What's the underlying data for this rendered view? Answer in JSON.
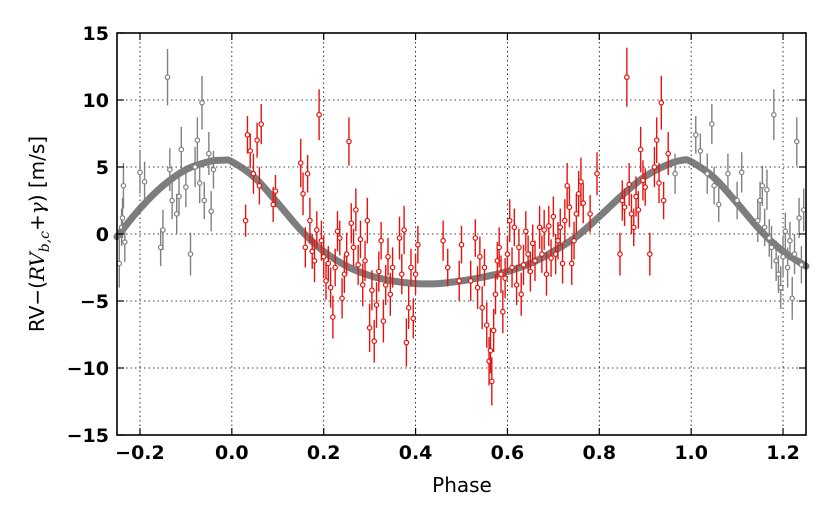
{
  "chart_data": {
    "type": "scatter",
    "xlabel": "Phase",
    "ylabel": {
      "prefix": "RV−(",
      "rv": "RV",
      "subscript": "b,c",
      "plus": "+",
      "gamma": "γ",
      "suffix": ") [m/s]"
    },
    "xlim": [
      -0.25,
      1.25
    ],
    "ylim": [
      -15,
      15
    ],
    "xticks": [
      -0.2,
      0.0,
      0.2,
      0.4,
      0.6,
      0.8,
      1.0,
      1.2
    ],
    "yticks": [
      -15,
      -10,
      -5,
      0,
      5,
      10,
      15
    ],
    "xtick_labels": [
      "−0.2",
      "0.0",
      "0.2",
      "0.4",
      "0.6",
      "0.8",
      "1.0",
      "1.2"
    ],
    "ytick_labels": [
      "−15",
      "−10",
      "−5",
      "0",
      "5",
      "10",
      "15"
    ],
    "grid": true,
    "colors": {
      "primary": "#e8120c",
      "wrapped": "#808080",
      "model": "#666666"
    },
    "model_curve": {
      "description": "Keplerian fit",
      "x": [
        -0.25,
        -0.2,
        -0.15,
        -0.1,
        -0.05,
        -0.02,
        0.0,
        0.05,
        0.1,
        0.15,
        0.2,
        0.25,
        0.3,
        0.35,
        0.4,
        0.45,
        0.5,
        0.55,
        0.6,
        0.65,
        0.7,
        0.75,
        0.8,
        0.85,
        0.9,
        0.95,
        0.98,
        1.0,
        1.05,
        1.1,
        1.15,
        1.2,
        1.25
      ],
      "y": [
        -0.2,
        1.9,
        3.6,
        4.8,
        5.4,
        5.5,
        5.4,
        4.2,
        2.3,
        0.3,
        -1.3,
        -2.4,
        -3.1,
        -3.5,
        -3.7,
        -3.7,
        -3.5,
        -3.2,
        -2.8,
        -2.2,
        -1.3,
        -0.2,
        1.3,
        2.9,
        4.3,
        5.2,
        5.5,
        5.4,
        4.2,
        2.3,
        0.3,
        -1.3,
        -2.4
      ]
    },
    "series": [
      {
        "color": "#e8120c",
        "points": [
          {
            "x": 0.03,
            "y": 1.0,
            "err": 1.2
          },
          {
            "x": 0.034,
            "y": 7.4,
            "err": 1.4
          },
          {
            "x": 0.04,
            "y": 6.2,
            "err": 1.3
          },
          {
            "x": 0.047,
            "y": 4.5,
            "err": 1.5
          },
          {
            "x": 0.055,
            "y": 7.0,
            "err": 1.3
          },
          {
            "x": 0.06,
            "y": 3.6,
            "err": 1.4
          },
          {
            "x": 0.064,
            "y": 8.2,
            "err": 1.5
          },
          {
            "x": 0.09,
            "y": 2.2,
            "err": 1.3
          },
          {
            "x": 0.095,
            "y": 3.2,
            "err": 1.2
          },
          {
            "x": 0.15,
            "y": 5.3,
            "err": 1.8
          },
          {
            "x": 0.155,
            "y": 3.0,
            "err": 1.6
          },
          {
            "x": 0.16,
            "y": -1.0,
            "err": 1.5
          },
          {
            "x": 0.165,
            "y": 4.5,
            "err": 1.4
          },
          {
            "x": 0.17,
            "y": 1.0,
            "err": 1.7
          },
          {
            "x": 0.175,
            "y": -1.3,
            "err": 1.3
          },
          {
            "x": 0.18,
            "y": -2.0,
            "err": 1.6
          },
          {
            "x": 0.185,
            "y": 0.3,
            "err": 1.4
          },
          {
            "x": 0.19,
            "y": 8.9,
            "err": 1.9
          },
          {
            "x": 0.195,
            "y": -0.5,
            "err": 1.5
          },
          {
            "x": 0.2,
            "y": -1.7,
            "err": 1.6
          },
          {
            "x": 0.205,
            "y": -3.5,
            "err": 1.4
          },
          {
            "x": 0.21,
            "y": -2.2,
            "err": 1.3
          },
          {
            "x": 0.215,
            "y": -4.0,
            "err": 1.5
          },
          {
            "x": 0.22,
            "y": -6.2,
            "err": 1.6
          },
          {
            "x": 0.225,
            "y": -2.5,
            "err": 1.4
          },
          {
            "x": 0.23,
            "y": 0.2,
            "err": 1.5
          },
          {
            "x": 0.235,
            "y": -0.3,
            "err": 1.3
          },
          {
            "x": 0.24,
            "y": -4.8,
            "err": 1.5
          },
          {
            "x": 0.245,
            "y": -3.0,
            "err": 1.4
          },
          {
            "x": 0.25,
            "y": -1.5,
            "err": 1.6
          },
          {
            "x": 0.255,
            "y": 6.9,
            "err": 1.8
          },
          {
            "x": 0.26,
            "y": 0.8,
            "err": 1.5
          },
          {
            "x": 0.265,
            "y": -1.0,
            "err": 1.4
          },
          {
            "x": 0.27,
            "y": 1.8,
            "err": 1.6
          },
          {
            "x": 0.275,
            "y": -2.3,
            "err": 1.5
          },
          {
            "x": 0.28,
            "y": -0.4,
            "err": 1.4
          },
          {
            "x": 0.285,
            "y": -3.8,
            "err": 1.6
          },
          {
            "x": 0.29,
            "y": -2.0,
            "err": 1.5
          },
          {
            "x": 0.295,
            "y": 1.0,
            "err": 1.7
          },
          {
            "x": 0.3,
            "y": -7.0,
            "err": 1.8
          },
          {
            "x": 0.305,
            "y": -4.2,
            "err": 1.5
          },
          {
            "x": 0.31,
            "y": -8.0,
            "err": 1.6
          },
          {
            "x": 0.315,
            "y": -5.3,
            "err": 1.7
          },
          {
            "x": 0.32,
            "y": -2.8,
            "err": 1.5
          },
          {
            "x": 0.325,
            "y": -0.5,
            "err": 1.4
          },
          {
            "x": 0.33,
            "y": -6.5,
            "err": 1.6
          },
          {
            "x": 0.335,
            "y": -3.8,
            "err": 1.5
          },
          {
            "x": 0.34,
            "y": -1.7,
            "err": 1.4
          },
          {
            "x": 0.345,
            "y": -4.5,
            "err": 1.6
          },
          {
            "x": 0.35,
            "y": -2.5,
            "err": 1.5
          },
          {
            "x": 0.365,
            "y": -0.3,
            "err": 1.6
          },
          {
            "x": 0.37,
            "y": -3.0,
            "err": 1.5
          },
          {
            "x": 0.375,
            "y": 0.3,
            "err": 1.8
          },
          {
            "x": 0.38,
            "y": -8.1,
            "err": 1.8
          },
          {
            "x": 0.385,
            "y": -5.5,
            "err": 1.6
          },
          {
            "x": 0.39,
            "y": -2.5,
            "err": 1.4
          },
          {
            "x": 0.395,
            "y": -6.3,
            "err": 1.5
          },
          {
            "x": 0.4,
            "y": -3.0,
            "err": 1.5
          },
          {
            "x": 0.405,
            "y": -0.8,
            "err": 1.4
          },
          {
            "x": 0.46,
            "y": -0.5,
            "err": 1.5
          },
          {
            "x": 0.47,
            "y": -2.5,
            "err": 1.4
          },
          {
            "x": 0.495,
            "y": -3.5,
            "err": 1.5
          },
          {
            "x": 0.5,
            "y": -0.8,
            "err": 1.4
          },
          {
            "x": 0.52,
            "y": -3.5,
            "err": 1.5
          },
          {
            "x": 0.53,
            "y": -0.3,
            "err": 1.4
          },
          {
            "x": 0.535,
            "y": -4.0,
            "err": 1.6
          },
          {
            "x": 0.54,
            "y": -1.7,
            "err": 1.5
          },
          {
            "x": 0.545,
            "y": -5.5,
            "err": 1.6
          },
          {
            "x": 0.55,
            "y": -2.5,
            "err": 1.4
          },
          {
            "x": 0.555,
            "y": -6.8,
            "err": 1.7
          },
          {
            "x": 0.56,
            "y": -9.5,
            "err": 1.8
          },
          {
            "x": 0.563,
            "y": -8.7,
            "err": 1.7
          },
          {
            "x": 0.566,
            "y": -11.0,
            "err": 1.8
          },
          {
            "x": 0.57,
            "y": -7.2,
            "err": 1.6
          },
          {
            "x": 0.574,
            "y": -4.5,
            "err": 1.5
          },
          {
            "x": 0.578,
            "y": -2.0,
            "err": 1.4
          },
          {
            "x": 0.582,
            "y": -1.0,
            "err": 1.5
          },
          {
            "x": 0.586,
            "y": -3.0,
            "err": 1.4
          },
          {
            "x": 0.59,
            "y": -5.8,
            "err": 1.6
          },
          {
            "x": 0.595,
            "y": -3.3,
            "err": 1.5
          },
          {
            "x": 0.6,
            "y": -1.5,
            "err": 1.4
          },
          {
            "x": 0.605,
            "y": 1.0,
            "err": 1.6
          },
          {
            "x": 0.61,
            "y": -2.5,
            "err": 1.5
          },
          {
            "x": 0.615,
            "y": 0.5,
            "err": 1.4
          },
          {
            "x": 0.62,
            "y": -3.8,
            "err": 1.5
          },
          {
            "x": 0.625,
            "y": -1.0,
            "err": 1.4
          },
          {
            "x": 0.63,
            "y": -4.5,
            "err": 1.6
          },
          {
            "x": 0.635,
            "y": -2.3,
            "err": 1.5
          },
          {
            "x": 0.64,
            "y": 0.2,
            "err": 1.5
          },
          {
            "x": 0.645,
            "y": -1.5,
            "err": 1.4
          },
          {
            "x": 0.65,
            "y": -2.8,
            "err": 1.5
          },
          {
            "x": 0.655,
            "y": -0.7,
            "err": 1.4
          },
          {
            "x": 0.66,
            "y": -2.0,
            "err": 1.5
          },
          {
            "x": 0.67,
            "y": 0.5,
            "err": 1.6
          },
          {
            "x": 0.675,
            "y": -1.5,
            "err": 1.4
          },
          {
            "x": 0.68,
            "y": 0.3,
            "err": 1.5
          },
          {
            "x": 0.685,
            "y": -3.0,
            "err": 1.6
          },
          {
            "x": 0.69,
            "y": 0.6,
            "err": 1.5
          },
          {
            "x": 0.695,
            "y": -1.8,
            "err": 1.4
          },
          {
            "x": 0.7,
            "y": 1.3,
            "err": 1.5
          },
          {
            "x": 0.705,
            "y": -1.5,
            "err": 1.5
          },
          {
            "x": 0.71,
            "y": -0.5,
            "err": 1.4
          },
          {
            "x": 0.715,
            "y": 0.5,
            "err": 1.4
          },
          {
            "x": 0.72,
            "y": -2.2,
            "err": 1.5
          },
          {
            "x": 0.725,
            "y": 1.0,
            "err": 1.6
          },
          {
            "x": 0.73,
            "y": 3.6,
            "err": 1.7
          },
          {
            "x": 0.735,
            "y": 2.0,
            "err": 1.5
          },
          {
            "x": 0.74,
            "y": -2.2,
            "err": 1.6
          },
          {
            "x": 0.745,
            "y": -0.5,
            "err": 1.4
          },
          {
            "x": 0.75,
            "y": 1.5,
            "err": 1.5
          },
          {
            "x": 0.755,
            "y": 3.0,
            "err": 1.7
          },
          {
            "x": 0.76,
            "y": 3.9,
            "err": 1.8
          },
          {
            "x": 0.765,
            "y": 2.3,
            "err": 1.5
          },
          {
            "x": 0.78,
            "y": 1.5,
            "err": 1.4
          },
          {
            "x": 0.795,
            "y": 4.5,
            "err": 1.6
          },
          {
            "x": 0.845,
            "y": -1.5,
            "err": 1.6
          },
          {
            "x": 0.85,
            "y": 2.5,
            "err": 1.5
          },
          {
            "x": 0.855,
            "y": 2.0,
            "err": 1.4
          },
          {
            "x": 0.86,
            "y": 11.7,
            "err": 2.2
          },
          {
            "x": 0.865,
            "y": 3.7,
            "err": 1.6
          },
          {
            "x": 0.87,
            "y": 1.5,
            "err": 1.5
          },
          {
            "x": 0.875,
            "y": 0.5,
            "err": 1.4
          },
          {
            "x": 0.88,
            "y": 2.8,
            "err": 1.5
          },
          {
            "x": 0.885,
            "y": 1.8,
            "err": 1.4
          },
          {
            "x": 0.89,
            "y": 6.3,
            "err": 1.7
          },
          {
            "x": 0.895,
            "y": 4.0,
            "err": 1.5
          },
          {
            "x": 0.9,
            "y": 3.5,
            "err": 1.4
          },
          {
            "x": 0.91,
            "y": -1.5,
            "err": 1.6
          },
          {
            "x": 0.92,
            "y": 5.0,
            "err": 1.5
          },
          {
            "x": 0.925,
            "y": 7.0,
            "err": 1.7
          },
          {
            "x": 0.93,
            "y": 3.8,
            "err": 1.5
          },
          {
            "x": 0.935,
            "y": 9.8,
            "err": 2.0
          },
          {
            "x": 0.94,
            "y": 2.5,
            "err": 1.4
          },
          {
            "x": 0.95,
            "y": 6.0,
            "err": 1.6
          }
        ]
      },
      {
        "color": "#808080",
        "points": [
          {
            "x": -0.245,
            "y": -2.2,
            "err": 1.8
          },
          {
            "x": -0.24,
            "y": 0.5,
            "err": 1.4
          },
          {
            "x": -0.238,
            "y": 1.2,
            "err": 1.5
          },
          {
            "x": -0.236,
            "y": 3.6,
            "err": 1.7
          },
          {
            "x": -0.233,
            "y": -0.6,
            "err": 1.5
          },
          {
            "x": -0.2,
            "y": 4.6,
            "err": 1.6
          },
          {
            "x": -0.19,
            "y": 3.9,
            "err": 1.5
          },
          {
            "x": -0.155,
            "y": -1.0,
            "err": 1.4
          },
          {
            "x": -0.15,
            "y": 0.3,
            "err": 1.5
          },
          {
            "x": -0.14,
            "y": 11.7,
            "err": 2.1
          },
          {
            "x": -0.135,
            "y": 4.8,
            "err": 1.6
          },
          {
            "x": -0.13,
            "y": 2.5,
            "err": 1.4
          },
          {
            "x": -0.12,
            "y": 1.5,
            "err": 1.5
          },
          {
            "x": -0.115,
            "y": 2.8,
            "err": 1.4
          },
          {
            "x": -0.11,
            "y": 6.3,
            "err": 1.7
          },
          {
            "x": -0.1,
            "y": 3.5,
            "err": 1.5
          },
          {
            "x": -0.09,
            "y": -1.5,
            "err": 1.6
          },
          {
            "x": -0.08,
            "y": 5.0,
            "err": 1.5
          },
          {
            "x": -0.075,
            "y": 7.0,
            "err": 1.7
          },
          {
            "x": -0.07,
            "y": 3.8,
            "err": 1.5
          },
          {
            "x": -0.065,
            "y": 9.8,
            "err": 2.0
          },
          {
            "x": -0.06,
            "y": 2.5,
            "err": 1.4
          },
          {
            "x": -0.05,
            "y": 6.0,
            "err": 1.6
          },
          {
            "x": -0.045,
            "y": 1.7,
            "err": 1.5
          },
          {
            "x": -0.04,
            "y": 4.8,
            "err": 1.4
          },
          {
            "x": 0.965,
            "y": 4.5,
            "err": 1.5
          },
          {
            "x": 1.01,
            "y": 7.4,
            "err": 1.4
          },
          {
            "x": 1.02,
            "y": 6.2,
            "err": 1.3
          },
          {
            "x": 1.035,
            "y": 4.5,
            "err": 1.5
          },
          {
            "x": 1.045,
            "y": 8.2,
            "err": 1.5
          },
          {
            "x": 1.05,
            "y": 3.6,
            "err": 1.4
          },
          {
            "x": 1.06,
            "y": 2.2,
            "err": 1.3
          },
          {
            "x": 1.08,
            "y": 4.5,
            "err": 1.5
          },
          {
            "x": 1.1,
            "y": 2.5,
            "err": 1.4
          },
          {
            "x": 1.11,
            "y": 4.6,
            "err": 1.5
          },
          {
            "x": 1.145,
            "y": 1.0,
            "err": 1.6
          },
          {
            "x": 1.15,
            "y": 2.5,
            "err": 1.4
          },
          {
            "x": 1.155,
            "y": 3.6,
            "err": 1.5
          },
          {
            "x": 1.16,
            "y": 0.5,
            "err": 1.4
          },
          {
            "x": 1.165,
            "y": 3.3,
            "err": 1.5
          },
          {
            "x": 1.17,
            "y": -0.3,
            "err": 1.4
          },
          {
            "x": 1.175,
            "y": -1.0,
            "err": 1.6
          },
          {
            "x": 1.18,
            "y": 8.9,
            "err": 1.9
          },
          {
            "x": 1.185,
            "y": -2.0,
            "err": 1.5
          },
          {
            "x": 1.19,
            "y": -3.0,
            "err": 1.4
          },
          {
            "x": 1.195,
            "y": -4.0,
            "err": 1.6
          },
          {
            "x": 1.2,
            "y": -1.7,
            "err": 1.5
          },
          {
            "x": 1.205,
            "y": 0.2,
            "err": 1.4
          },
          {
            "x": 1.21,
            "y": -2.5,
            "err": 1.5
          },
          {
            "x": 1.215,
            "y": -0.5,
            "err": 1.4
          },
          {
            "x": 1.22,
            "y": -4.8,
            "err": 1.6
          },
          {
            "x": 1.225,
            "y": -1.5,
            "err": 1.5
          },
          {
            "x": 1.23,
            "y": 6.9,
            "err": 1.8
          },
          {
            "x": 1.235,
            "y": 1.2,
            "err": 1.5
          },
          {
            "x": 1.24,
            "y": -2.3,
            "err": 1.4
          },
          {
            "x": 1.245,
            "y": 1.8,
            "err": 1.6
          }
        ]
      }
    ]
  }
}
